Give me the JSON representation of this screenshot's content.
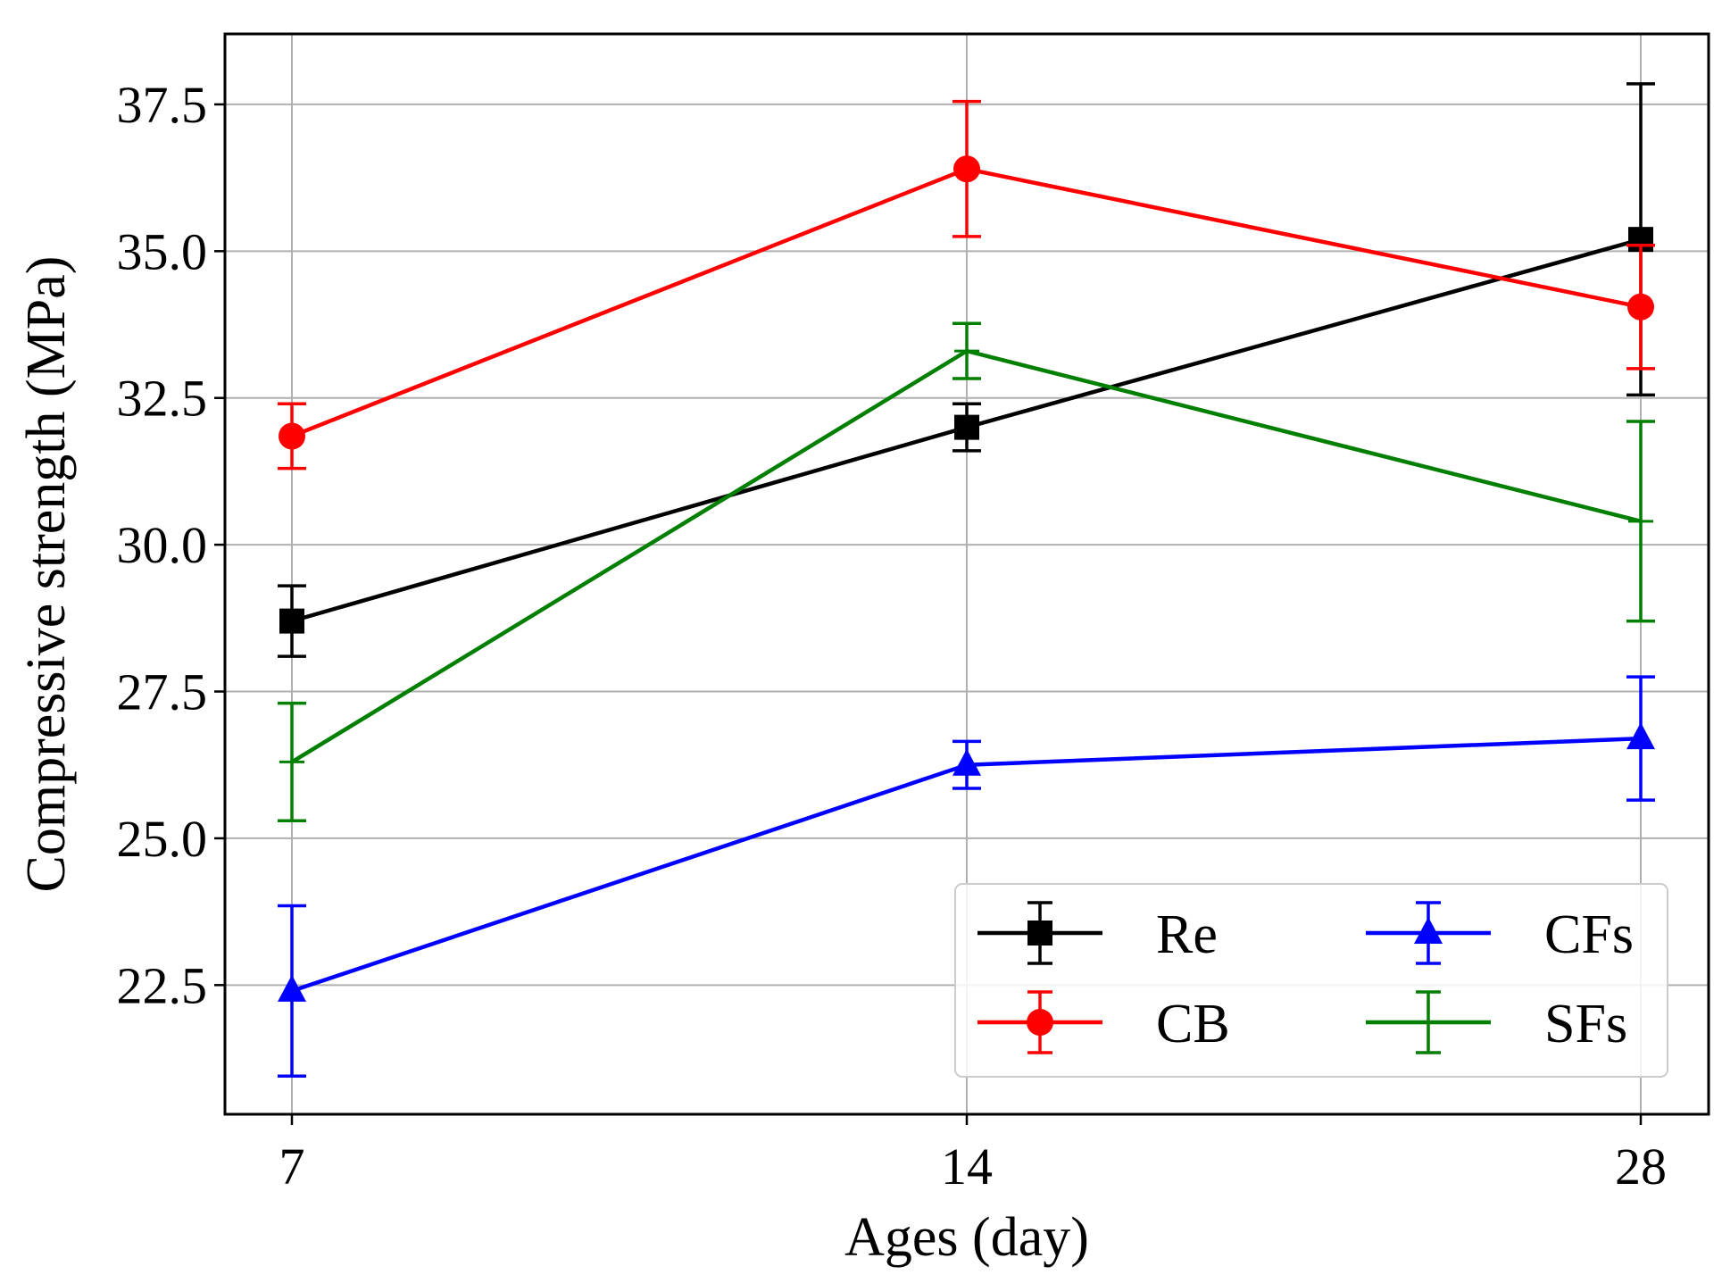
{
  "chart_data": {
    "type": "line",
    "xlabel": "Ages (day)",
    "ylabel": "Compressive strength (MPa)",
    "categories": [
      "7",
      "14",
      "28"
    ],
    "yticks": [
      "22.5",
      "25.0",
      "27.5",
      "30.0",
      "32.5",
      "35.0",
      "37.5"
    ],
    "ylim": [
      20.3,
      38.7
    ],
    "grid": true,
    "legend": {
      "placement": "lower-right",
      "columns": 2,
      "order": [
        "Re",
        "CFs",
        "CB",
        "SFs"
      ]
    },
    "series": [
      {
        "name": "Re",
        "color": "#000000",
        "marker": "square",
        "values": [
          28.7,
          32.0,
          35.2
        ],
        "errors": [
          0.6,
          0.4,
          2.65
        ]
      },
      {
        "name": "CB",
        "color": "#ff0000",
        "marker": "circle",
        "values": [
          31.85,
          36.4,
          34.05
        ],
        "errors": [
          0.55,
          1.15,
          1.05
        ]
      },
      {
        "name": "CFs",
        "color": "#0000ff",
        "marker": "triangle",
        "values": [
          22.4,
          26.25,
          26.7
        ],
        "errors": [
          1.45,
          0.4,
          1.05
        ]
      },
      {
        "name": "SFs",
        "color": "#007f00",
        "marker": "plus",
        "values": [
          26.3,
          33.3,
          30.4
        ],
        "errors": [
          1.0,
          0.47,
          1.7
        ]
      }
    ]
  }
}
